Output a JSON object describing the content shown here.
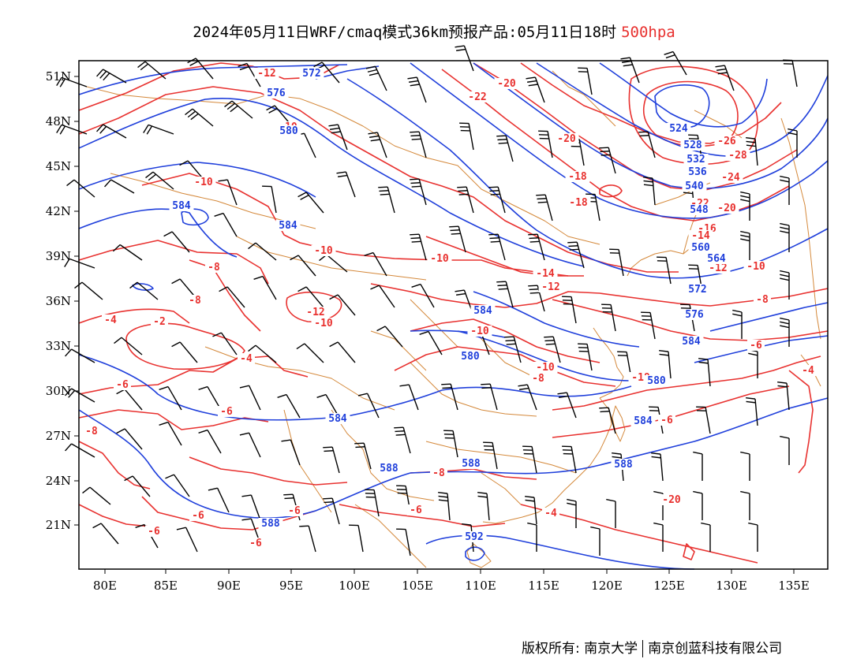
{
  "header": {
    "title": "2024年05月11日WRF/cmaq模式36km预报产品:05月11日18时",
    "level": "500hpa"
  },
  "map": {
    "lon_labels": [
      "80E",
      "85E",
      "90E",
      "95E",
      "100E",
      "105E",
      "110E",
      "115E",
      "120E",
      "125E",
      "130E",
      "135E"
    ],
    "lat_labels": [
      "51N",
      "48N",
      "45N",
      "42N",
      "39N",
      "36N",
      "33N",
      "30N",
      "27N",
      "24N",
      "21N"
    ],
    "colors": {
      "height": "#1f3fdb",
      "temperature": "#e8312f",
      "coast": "#d4883a",
      "wind": "#000000"
    },
    "height_labels": [
      "572",
      "576",
      "580",
      "584",
      "584",
      "584",
      "580",
      "584",
      "580",
      "584",
      "588",
      "588",
      "588",
      "588",
      "592",
      "524",
      "528",
      "532",
      "536",
      "540",
      "548",
      "560",
      "564",
      "572",
      "576",
      "584"
    ],
    "temp_labels": [
      "-12",
      "-10",
      "-10",
      "-10",
      "-8",
      "-8",
      "-4",
      "-2",
      "-4",
      "-6",
      "-6",
      "-8",
      "-6",
      "-6",
      "-6",
      "-6",
      "-8",
      "-6",
      "-4",
      "-10",
      "-12",
      "-10",
      "-10",
      "-14",
      "-12",
      "-18",
      "-20",
      "-22",
      "-20",
      "-18",
      "-16",
      "-14",
      "-12",
      "-10",
      "-8",
      "-6",
      "-26",
      "-28",
      "-24",
      "-20",
      "-22",
      "-18",
      "-20",
      "-4",
      "-6",
      "-10",
      "-8"
    ]
  },
  "footer": {
    "copyright": "版权所有: 南京大学",
    "company": "南京创蓝科技有限公司"
  }
}
